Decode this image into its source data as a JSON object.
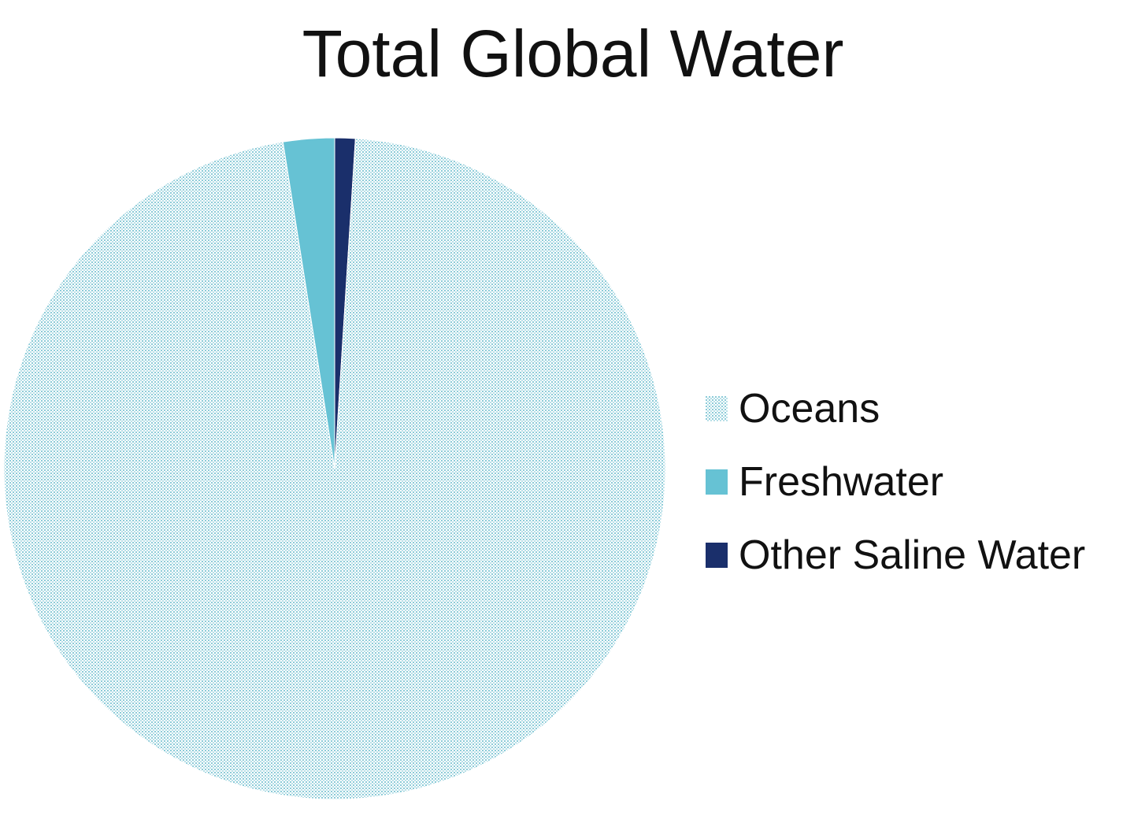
{
  "chart_data": {
    "type": "pie",
    "title": "Total Global Water",
    "categories": [
      "Oceans",
      "Freshwater",
      "Other Saline Water"
    ],
    "values": [
      96.5,
      2.5,
      1.0
    ],
    "colors": [
      "#9fd3de",
      "#66c2d4",
      "#1a2f6b"
    ],
    "legend_position": "right"
  }
}
